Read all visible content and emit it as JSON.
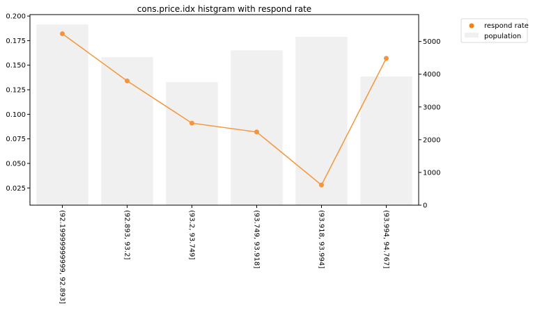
{
  "chart_data": {
    "type": "bar+line",
    "title": "cons.price.idx histgram with respond rate",
    "categories": [
      "(92.19999999999, 92.893]",
      "(92.893, 93.2]",
      "(93.2, 93.749]",
      "(93.749, 93.918]",
      "(93.918, 93.994]",
      "(93.994, 94.767]"
    ],
    "series": [
      {
        "name": "respond rate",
        "type": "line",
        "axis": "left",
        "color": "#f5953a",
        "values": [
          0.182,
          0.134,
          0.091,
          0.082,
          0.028,
          0.157
        ]
      },
      {
        "name": "population",
        "type": "bar",
        "axis": "right",
        "color": "#f0f0f0",
        "values": [
          5520,
          4520,
          3760,
          4730,
          5140,
          3930
        ]
      }
    ],
    "left_axis": {
      "ylim": [
        0.0075,
        0.2015
      ],
      "ticks": [
        "0.025",
        "0.050",
        "0.075",
        "0.100",
        "0.125",
        "0.150",
        "0.175",
        "0.200"
      ]
    },
    "right_axis": {
      "ylim": [
        0,
        5820
      ],
      "ticks": [
        "0",
        "1000",
        "2000",
        "3000",
        "4000",
        "5000"
      ]
    },
    "legend": {
      "placement": "outside-top-right",
      "entries": [
        {
          "label": "respond rate",
          "marker": "circle",
          "color": "#f5830a"
        },
        {
          "label": "population",
          "marker": "square",
          "color": "#f0f0f0"
        }
      ]
    },
    "grid": false
  }
}
